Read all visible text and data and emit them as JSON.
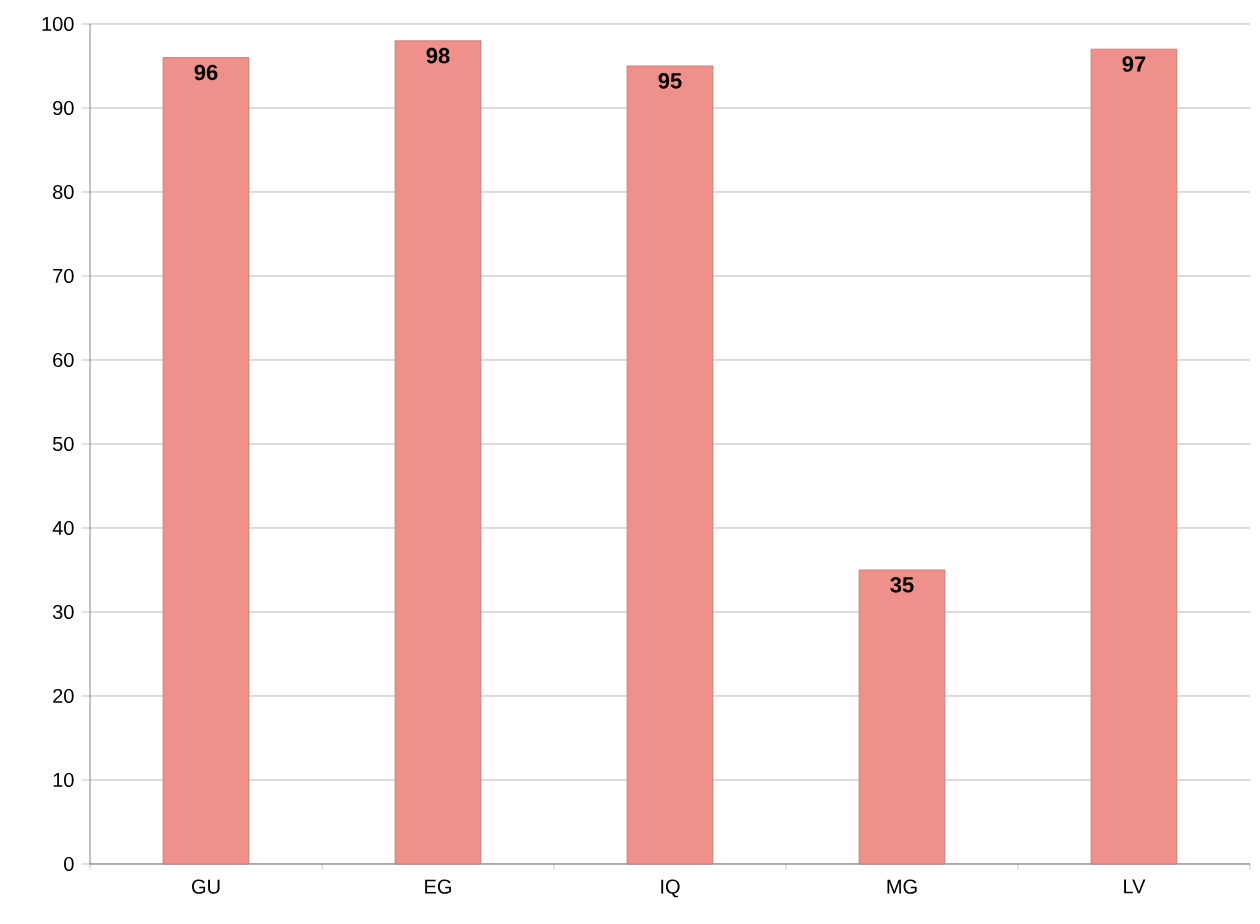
{
  "chart_data": {
    "type": "bar",
    "categories": [
      "GU",
      "EG",
      "IQ",
      "MG",
      "LV"
    ],
    "values": [
      96,
      98,
      95,
      35,
      97
    ],
    "color": "#f0908a",
    "ylim": [
      0,
      100
    ],
    "yticks": [
      0,
      10,
      20,
      30,
      40,
      50,
      60,
      70,
      80,
      90,
      100
    ],
    "grid": "y",
    "data_labels": true
  }
}
